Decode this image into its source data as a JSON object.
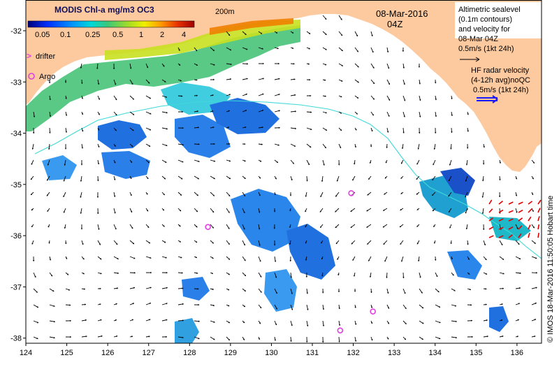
{
  "map": {
    "colorbar": {
      "title": "MODIS Chl-a mg/m3 OC3",
      "ticks": [
        "0.05",
        "0.1",
        "0.25",
        "0.5",
        "1",
        "2",
        "4"
      ],
      "colors": [
        "#00007a",
        "#0030ff",
        "#0090ff",
        "#00d8d8",
        "#3cc878",
        "#a0dc28",
        "#f0f000",
        "#ff9a00",
        "#e83200",
        "#a00000"
      ]
    },
    "isobath_label": "200m",
    "date": "08-Mar-2016",
    "time": "04Z",
    "altimetry_legend": {
      "lines": [
        "Altimetric sealevel",
        "(0.1m contours)",
        "and velocity for",
        "08-Mar 04Z"
      ],
      "scale_label": "0.5m/s (1kt 24h)"
    },
    "hf_radar_legend": {
      "lines": [
        "HF radar velocity",
        "(4-12h avg)noQC"
      ],
      "scale_label": "0.5m/s (1kt 24h)"
    },
    "drifter_label": "drifter",
    "argo_label": "Argo",
    "x_ticks": [
      "124",
      "125",
      "126",
      "127",
      "128",
      "129",
      "130",
      "131",
      "132",
      "133",
      "134",
      "135",
      "136"
    ],
    "y_ticks": [
      "-32",
      "-33",
      "-34",
      "-35",
      "-36",
      "-37",
      "-38"
    ],
    "x_range": [
      124,
      136.6
    ],
    "y_range": [
      -31.4,
      -38.1
    ],
    "credit": "© IMOS 18-Mar-2016 11:50:05 Hobart time",
    "argo_floats": [
      {
        "lon": 128.45,
        "lat": -35.83
      },
      {
        "lon": 131.95,
        "lat": -35.17
      },
      {
        "lon": 132.48,
        "lat": -37.48
      },
      {
        "lon": 131.68,
        "lat": -37.85
      }
    ],
    "colors": {
      "land": "#fdc99f",
      "argo": "#e040e0",
      "drifter": "#e040e0",
      "isobath": "#40d8d8",
      "hf_radar": "#e00000",
      "hf_legend_arrow": "#1a1aff",
      "vector": "#000000"
    }
  }
}
